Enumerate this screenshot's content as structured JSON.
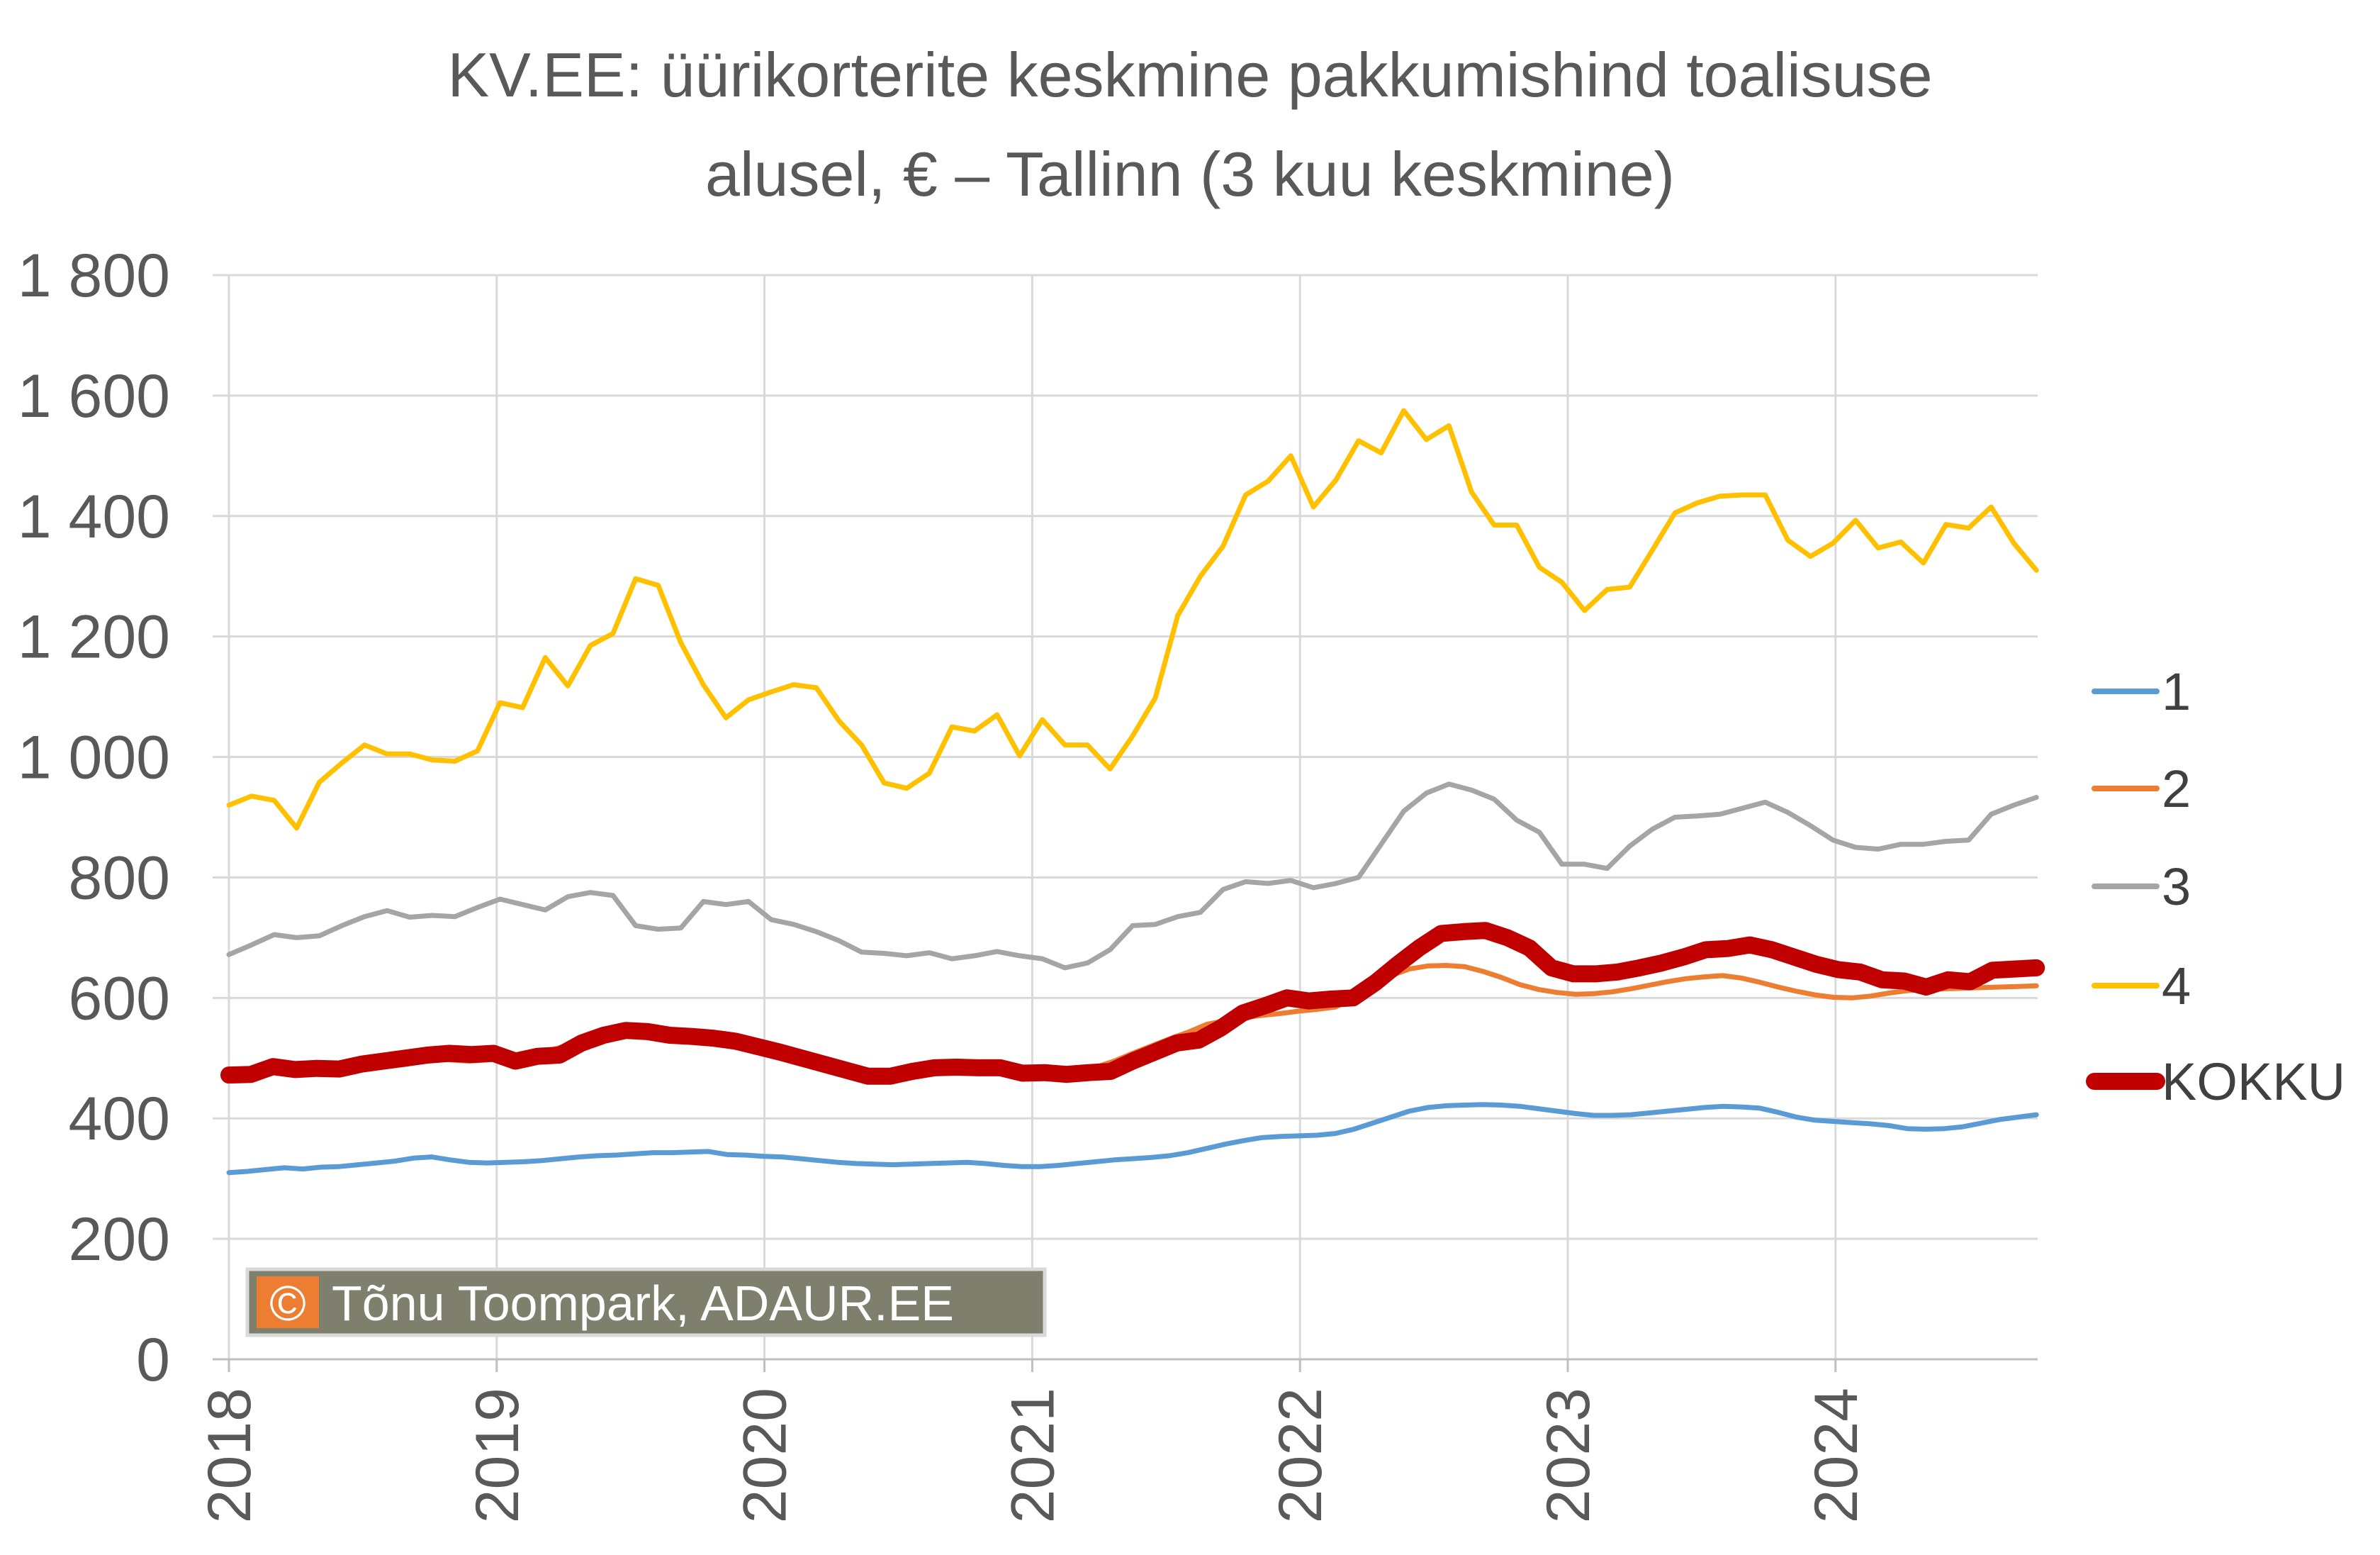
{
  "chart_data": {
    "type": "line",
    "title": "KV.EE: üürikorterite keskmine pakkumishind toalisuse",
    "subtitle": "alusel, € – Tallinn (3 kuu keskmine)",
    "xlabel": "",
    "ylabel": "",
    "ylim": [
      0,
      1800
    ],
    "yticks": [
      0,
      200,
      400,
      600,
      800,
      1000,
      1200,
      1400,
      1600,
      1800
    ],
    "ytick_labels": [
      "0",
      "200",
      "400",
      "600",
      "800",
      "1 000",
      "1 200",
      "1 400",
      "1 600",
      "1 800"
    ],
    "xticks": [
      "2018",
      "2019",
      "2020",
      "2021",
      "2022",
      "2023",
      "2024"
    ],
    "grid": true,
    "legend_position": "right",
    "start_year": 2018,
    "series": [
      {
        "name": "1",
        "color": "#5B9BD5",
        "width": "thin",
        "values": [
          310,
          312,
          315,
          318,
          316,
          319,
          320,
          323,
          326,
          329,
          334,
          336,
          331,
          327,
          326,
          327,
          328,
          330,
          333,
          336,
          338,
          339,
          341,
          343,
          343,
          344,
          345,
          340,
          339,
          337,
          336,
          333,
          330,
          327,
          325,
          324,
          323,
          324,
          325,
          326,
          327,
          325,
          322,
          320,
          320,
          322,
          325,
          328,
          331,
          333,
          335,
          338,
          343,
          350,
          357,
          363,
          368,
          370,
          371,
          372,
          375,
          382,
          392,
          402,
          412,
          418,
          421,
          422,
          423,
          422,
          420,
          416,
          412,
          408,
          405,
          405,
          406,
          409,
          412,
          415,
          418,
          420,
          419,
          417,
          410,
          402,
          397,
          395,
          393,
          391,
          388,
          383,
          382,
          383,
          386,
          392,
          398,
          402,
          406
        ]
      },
      {
        "name": "2",
        "color": "#ED7D31",
        "width": "thin",
        "values": [
          470,
          472,
          476,
          479,
          480,
          481,
          482,
          485,
          488,
          491,
          496,
          499,
          497,
          495,
          497,
          500,
          504,
          510,
          518,
          526,
          533,
          538,
          540,
          538,
          535,
          532,
          528,
          522,
          515,
          508,
          500,
          493,
          486,
          480,
          474,
          471,
          471,
          475,
          480,
          484,
          485,
          484,
          482,
          480,
          478,
          478,
          480,
          485,
          495,
          508,
          520,
          532,
          543,
          556,
          562,
          567,
          571,
          574,
          578,
          581,
          585,
          600,
          618,
          637,
          648,
          653,
          654,
          652,
          644,
          634,
          622,
          614,
          609,
          606,
          607,
          610,
          615,
          621,
          627,
          632,
          635,
          637,
          633,
          626,
          618,
          611,
          605,
          601,
          600,
          603,
          608,
          612,
          614,
          615,
          616,
          617,
          618,
          619,
          620
        ]
      },
      {
        "name": "3",
        "color": "#A5A5A5",
        "width": "thin",
        "values": [
          672,
          688,
          705,
          700,
          703,
          720,
          735,
          745,
          734,
          737,
          735,
          750,
          764,
          755,
          746,
          768,
          775,
          770,
          720,
          714,
          716,
          760,
          755,
          760,
          730,
          722,
          710,
          695,
          676,
          674,
          670,
          675,
          665,
          670,
          677,
          670,
          665,
          650,
          658,
          680,
          720,
          722,
          735,
          742,
          780,
          793,
          790,
          795,
          783,
          790,
          800,
          855,
          910,
          940,
          955,
          945,
          930,
          895,
          875,
          822,
          822,
          815,
          852,
          880,
          900,
          902,
          905,
          915,
          925,
          908,
          886,
          862,
          850,
          847,
          855,
          855,
          860,
          862,
          905,
          920,
          933
        ]
      },
      {
        "name": "4",
        "color": "#FFC000",
        "width": "thin",
        "values": [
          920,
          935,
          928,
          882,
          958,
          990,
          1020,
          1005,
          1005,
          995,
          993,
          1010,
          1090,
          1082,
          1165,
          1118,
          1185,
          1205,
          1296,
          1285,
          1190,
          1120,
          1065,
          1095,
          1108,
          1120,
          1115,
          1060,
          1020,
          957,
          948,
          973,
          1050,
          1043,
          1070,
          1002,
          1062,
          1020,
          1020,
          980,
          1035,
          1098,
          1235,
          1300,
          1350,
          1435,
          1458,
          1500,
          1415,
          1460,
          1525,
          1505,
          1575,
          1527,
          1550,
          1440,
          1385,
          1385,
          1315,
          1290,
          1243,
          1278,
          1282,
          1343,
          1405,
          1422,
          1433,
          1435,
          1435,
          1360,
          1333,
          1355,
          1393,
          1347,
          1357,
          1322,
          1386,
          1380,
          1415,
          1355,
          1310
        ]
      },
      {
        "name": "KOKKU",
        "color": "#C00000",
        "width": "thick",
        "values": [
          472,
          473,
          486,
          481,
          483,
          482,
          490,
          495,
          500,
          505,
          508,
          506,
          508,
          495,
          503,
          505,
          525,
          538,
          546,
          544,
          538,
          536,
          533,
          528,
          519,
          510,
          500,
          490,
          480,
          470,
          470,
          478,
          484,
          485,
          484,
          484,
          475,
          476,
          473,
          476,
          478,
          495,
          510,
          525,
          530,
          550,
          575,
          587,
          600,
          595,
          598,
          600,
          625,
          655,
          683,
          707,
          710,
          712,
          700,
          683,
          650,
          640,
          640,
          643,
          650,
          658,
          668,
          680,
          682,
          688,
          680,
          668,
          656,
          647,
          643,
          630,
          628,
          618,
          630,
          627,
          646,
          648,
          650
        ]
      }
    ]
  },
  "credit": {
    "symbol": "©",
    "text": "Tõnu Toompark, ADAUR.EE"
  }
}
